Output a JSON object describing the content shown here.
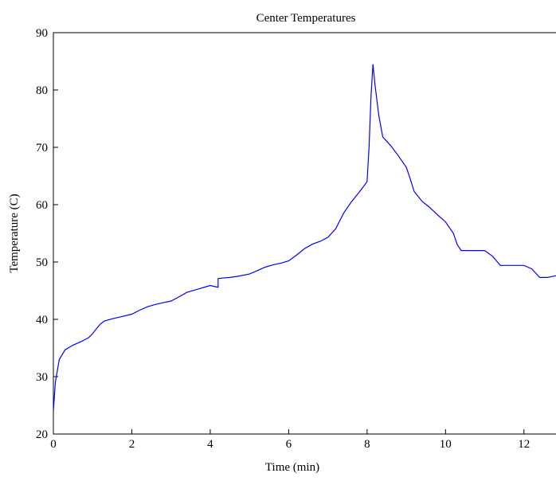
{
  "chart_data": {
    "type": "line",
    "title": "Center Temperatures",
    "xlabel": "Time (min)",
    "ylabel": "Temperature (C)",
    "xlim": [
      0,
      13
    ],
    "ylim": [
      20,
      90
    ],
    "x_ticks": [
      0,
      2,
      4,
      6,
      8,
      10,
      12
    ],
    "y_ticks": [
      20,
      30,
      40,
      50,
      60,
      70,
      80,
      90
    ],
    "grid": false,
    "line_color": "#0000ff",
    "series": [
      {
        "x": [
          0,
          0.05,
          0.15,
          0.3,
          0.5,
          0.7,
          0.9,
          1.0,
          1.1,
          1.2,
          1.3,
          1.5,
          1.7,
          2.0,
          2.2,
          2.4,
          2.6,
          2.8,
          3.0,
          3.2,
          3.4,
          3.6,
          3.8,
          4.0,
          4.2,
          4.2,
          4.3,
          4.5,
          4.7,
          5.0,
          5.2,
          5.4,
          5.6,
          5.8,
          6.0,
          6.2,
          6.4,
          6.6,
          6.8,
          7.0,
          7.2,
          7.4,
          7.6,
          7.8,
          8.0,
          8.05,
          8.1,
          8.15,
          8.2,
          8.3,
          8.4,
          8.6,
          8.8,
          9.0,
          9.1,
          9.2,
          9.4,
          9.6,
          9.8,
          10.0,
          10.2,
          10.3,
          10.4,
          10.6,
          10.8,
          11.0,
          11.2,
          11.4,
          11.6,
          11.8,
          12.0,
          12.2,
          12.4,
          12.6,
          12.8,
          13.0
        ],
        "y": [
          24,
          29,
          33,
          34.7,
          35.5,
          36.1,
          36.8,
          37.5,
          38.4,
          39.2,
          39.7,
          40.1,
          40.4,
          40.9,
          41.6,
          42.2,
          42.6,
          42.9,
          43.2,
          43.9,
          44.7,
          45.1,
          45.5,
          45.9,
          45.6,
          47.1,
          47.2,
          47.3,
          47.5,
          47.9,
          48.5,
          49.1,
          49.5,
          49.8,
          50.2,
          51.2,
          52.3,
          53.1,
          53.6,
          54.3,
          55.8,
          58.5,
          60.5,
          62.2,
          64.0,
          70.0,
          79.0,
          84.5,
          81.0,
          75.5,
          71.8,
          70.3,
          68.5,
          66.5,
          64.5,
          62.3,
          60.6,
          59.5,
          58.2,
          57.0,
          55.0,
          53.0,
          52.0,
          52.0,
          52.0,
          52.0,
          51.0,
          49.4,
          49.4,
          49.4,
          49.4,
          48.8,
          47.3,
          47.3,
          47.6,
          47.6
        ]
      }
    ]
  }
}
